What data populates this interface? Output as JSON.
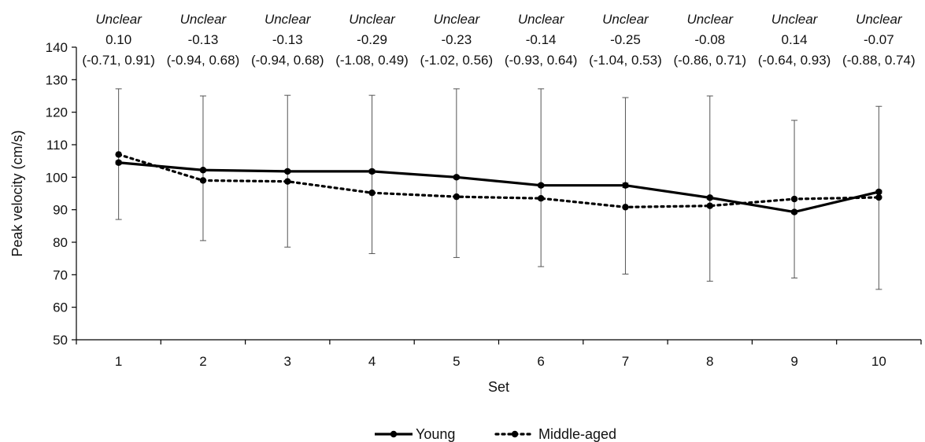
{
  "chart_data": {
    "type": "line",
    "xlabel": "Set",
    "ylabel": "Peak velocity (cm/s)",
    "categories": [
      "1",
      "2",
      "3",
      "4",
      "5",
      "6",
      "7",
      "8",
      "9",
      "10"
    ],
    "ylim": [
      50,
      140
    ],
    "yticks": [
      "50",
      "60",
      "70",
      "80",
      "90",
      "100",
      "110",
      "120",
      "130",
      "140"
    ],
    "grid": false,
    "legend_position": "bottom-center",
    "series": [
      {
        "name": "Young",
        "values": [
          104.5,
          102.2,
          101.8,
          101.8,
          100.0,
          97.5,
          97.5,
          93.7,
          89.3,
          95.5
        ],
        "error_low": [
          104.0,
          101.8,
          101.4,
          101.2,
          99.5,
          97.0,
          96.8,
          93.2,
          88.8,
          95.0
        ],
        "error_high": [
          105.0,
          102.6,
          102.2,
          102.3,
          100.5,
          98.0,
          98.2,
          94.2,
          89.8,
          96.0
        ],
        "style": "solid",
        "color": "#000000"
      },
      {
        "name": "Middle-aged",
        "values": [
          107.0,
          99.0,
          98.7,
          95.2,
          94.0,
          93.5,
          90.8,
          91.2,
          93.3,
          93.8
        ],
        "error_low": [
          87.0,
          80.5,
          78.5,
          76.5,
          75.3,
          72.5,
          70.2,
          68.0,
          69.0,
          65.5
        ],
        "error_high": [
          127.2,
          125.0,
          125.2,
          125.2,
          127.2,
          127.2,
          124.5,
          125.0,
          117.5,
          121.8
        ],
        "style": "dotted",
        "color": "#000000"
      }
    ],
    "annotations": [
      {
        "label": "Unclear",
        "value": "0.10",
        "ci": "(-0.71, 0.91)"
      },
      {
        "label": "Unclear",
        "value": "-0.13",
        "ci": "(-0.94, 0.68)"
      },
      {
        "label": "Unclear",
        "value": "-0.13",
        "ci": "(-0.94, 0.68)"
      },
      {
        "label": "Unclear",
        "value": "-0.29",
        "ci": "(-1.08, 0.49)"
      },
      {
        "label": "Unclear",
        "value": "-0.23",
        "ci": "(-1.02, 0.56)"
      },
      {
        "label": "Unclear",
        "value": "-0.14",
        "ci": "(-0.93, 0.64)"
      },
      {
        "label": "Unclear",
        "value": "-0.25",
        "ci": "(-1.04, 0.53)"
      },
      {
        "label": "Unclear",
        "value": "-0.08",
        "ci": "(-0.86, 0.71)"
      },
      {
        "label": "Unclear",
        "value": "0.14",
        "ci": "(-0.64, 0.93)"
      },
      {
        "label": "Unclear",
        "value": "-0.07",
        "ci": "(-0.88, 0.74)"
      }
    ]
  }
}
